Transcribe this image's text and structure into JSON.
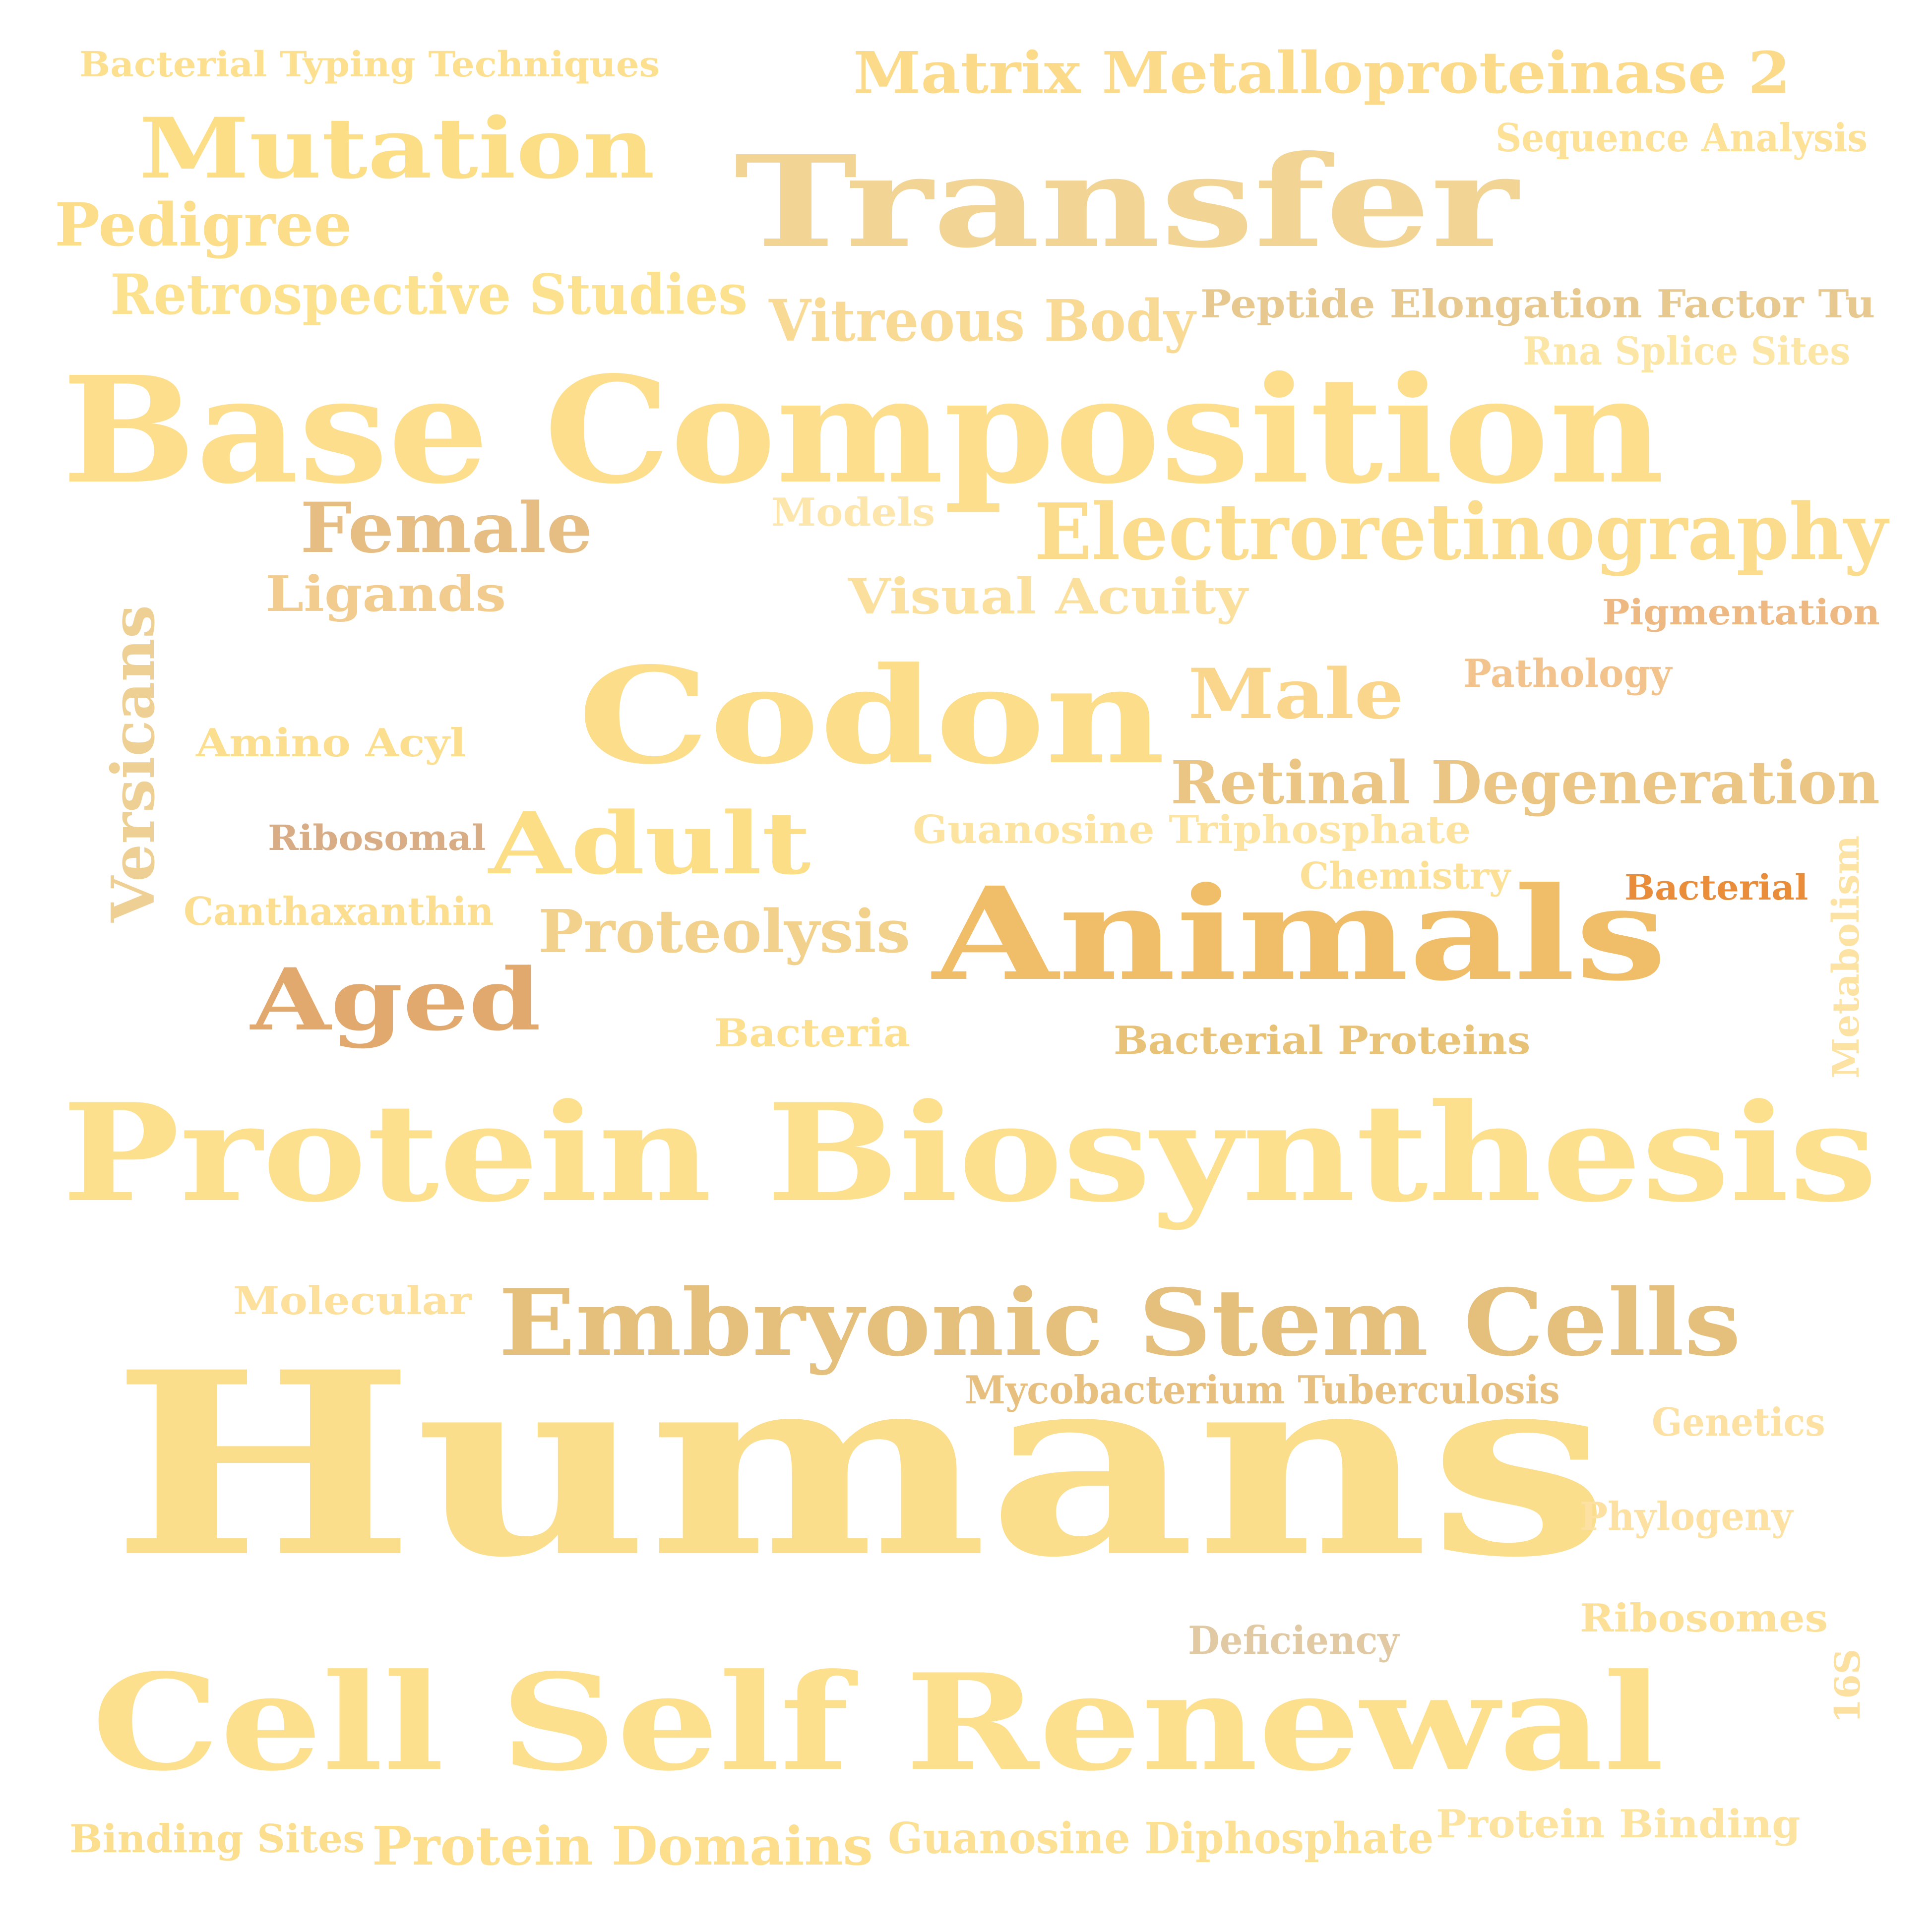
{
  "words": [
    {
      "text": "Bacterial Typing Techniques",
      "color": "#FCE08F"
    },
    {
      "text": "Matrix Metalloproteinase 2",
      "color": "#FBDB8A"
    },
    {
      "text": "Mutation",
      "color": "#FCDE86"
    },
    {
      "text": "Sequence Analysis",
      "color": "#FCE197"
    },
    {
      "text": "Transfer",
      "color": "#F2D595"
    },
    {
      "text": "Pedigree",
      "color": "#FCDE8A"
    },
    {
      "text": "Retrospective Studies",
      "color": "#FCE28E"
    },
    {
      "text": "Vitreous Body",
      "color": "#F8DA94"
    },
    {
      "text": "Peptide Elongation Factor Tu",
      "color": "#E7C88F"
    },
    {
      "text": "Rna Splice Sites",
      "color": "#FCE6A6"
    },
    {
      "text": "Base Composition",
      "color": "#FCDE8D"
    },
    {
      "text": "Female",
      "color": "#E6BE83"
    },
    {
      "text": "Models",
      "color": "#FCE6AC"
    },
    {
      "text": "Electroretinography",
      "color": "#FBDC8C"
    },
    {
      "text": "Ligands",
      "color": "#F1CC8E"
    },
    {
      "text": "Visual Acuity",
      "color": "#FBE09D"
    },
    {
      "text": "Pigmentation",
      "color": "#EDB882"
    },
    {
      "text": "Versicans",
      "color": "#EFD094"
    },
    {
      "text": "Pathology",
      "color": "#F2C38C"
    },
    {
      "text": "Codon",
      "color": "#FCDE8A"
    },
    {
      "text": "Male",
      "color": "#F9D68C"
    },
    {
      "text": "Amino Acyl",
      "color": "#FCDE8F"
    },
    {
      "text": "Retinal Degeneration",
      "color": "#EBC583"
    },
    {
      "text": "Ribosomal",
      "color": "#D8AC85"
    },
    {
      "text": "Adult",
      "color": "#FCDE86"
    },
    {
      "text": "Guanosine Triphosphate",
      "color": "#FCE4A0"
    },
    {
      "text": "Chemistry",
      "color": "#FCE096"
    },
    {
      "text": "Bacterial",
      "color": "#EA8D3B"
    },
    {
      "text": "Metabolism",
      "color": "#FCE3A3"
    },
    {
      "text": "Canthaxanthin",
      "color": "#FCDE90"
    },
    {
      "text": "Proteolysis",
      "color": "#F2D18D"
    },
    {
      "text": "Animals",
      "color": "#F0BE68"
    },
    {
      "text": "Aged",
      "color": "#E2A96F"
    },
    {
      "text": "Bacteria",
      "color": "#FCE08F"
    },
    {
      "text": "Bacterial Proteins",
      "color": "#E8C276"
    },
    {
      "text": "Protein Biosynthesis",
      "color": "#FCE08E"
    },
    {
      "text": "Molecular",
      "color": "#FCE09B"
    },
    {
      "text": "Embryonic Stem Cells",
      "color": "#E5C07D"
    },
    {
      "text": "Mycobacterium Tuberculosis",
      "color": "#E7BF7E"
    },
    {
      "text": "Humans",
      "color": "#FADE8B"
    },
    {
      "text": "Genetics",
      "color": "#FCE1A2"
    },
    {
      "text": "Phylogeny",
      "color": "#FCE1A2"
    },
    {
      "text": "Ribosomes",
      "color": "#FCE097"
    },
    {
      "text": "Deficiency",
      "color": "#E1C9A3"
    },
    {
      "text": "16S",
      "color": "#FCE0A0"
    },
    {
      "text": "Cell Self Renewal",
      "color": "#FCE08D"
    },
    {
      "text": "Binding Sites",
      "color": "#FCDE8F"
    },
    {
      "text": "Protein Domains",
      "color": "#FCDE8D"
    },
    {
      "text": "Guanosine Diphosphate",
      "color": "#FCE093"
    },
    {
      "text": "Protein Binding",
      "color": "#FCE4A0"
    }
  ]
}
